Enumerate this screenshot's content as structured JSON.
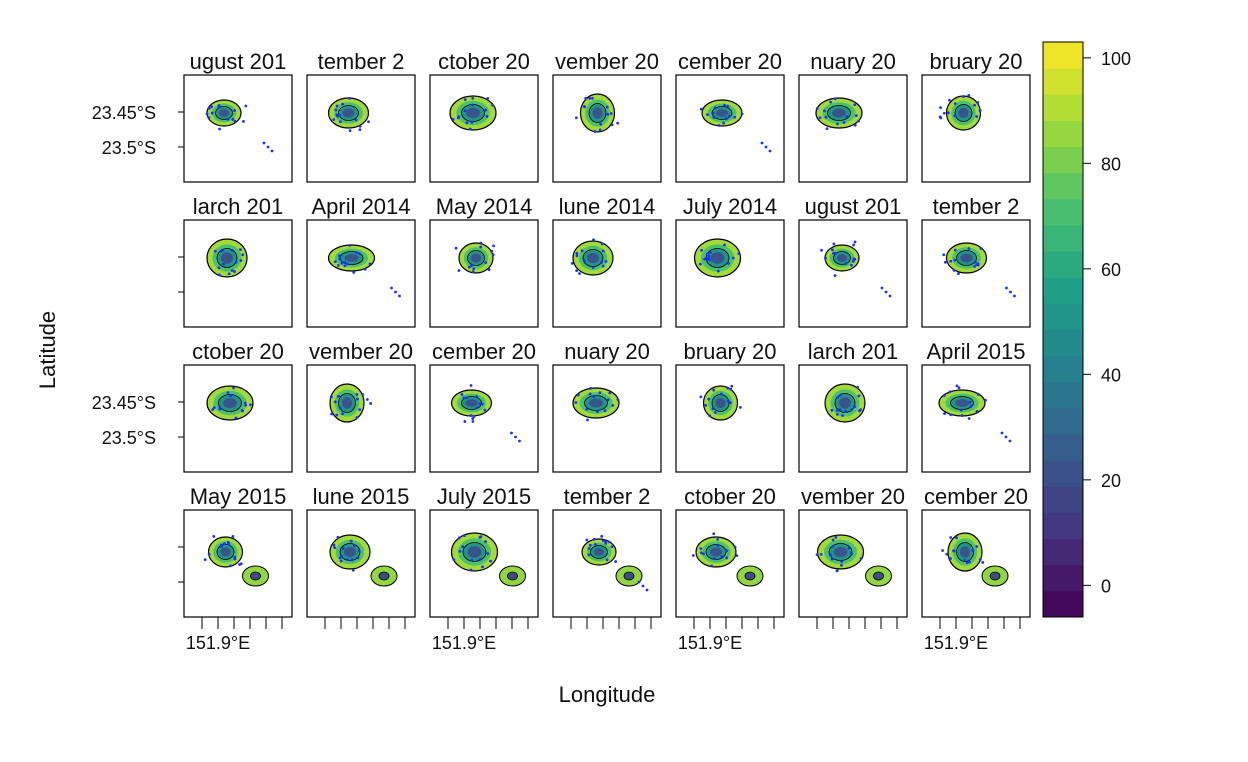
{
  "chart_data": {
    "type": "heatmap",
    "xlabel": "Longitude",
    "ylabel": "Latitude",
    "x_tick_label": "151.9°E",
    "y_tick_labels": [
      "23.45°S",
      "23.5°S"
    ],
    "grid": false,
    "colorbar": {
      "range": [
        -6,
        103
      ],
      "ticks": [
        0,
        20,
        40,
        60,
        80,
        100
      ],
      "tick_labels": [
        "0",
        "20",
        "40",
        "60",
        "80",
        "100"
      ],
      "palette": [
        "#440154",
        "#46337e",
        "#365c8d",
        "#277f8e",
        "#1fa187",
        "#4ac16d",
        "#a0da39",
        "#fde725"
      ]
    },
    "points_color": "#1f2fff",
    "panels": [
      {
        "title": "ugust 201"
      },
      {
        "title": "tember 2"
      },
      {
        "title": "ctober 20"
      },
      {
        "title": "vember 20"
      },
      {
        "title": "cember 20"
      },
      {
        "title": "nuary 20"
      },
      {
        "title": "bruary 20"
      },
      {
        "title": "larch 201"
      },
      {
        "title": "April 2014"
      },
      {
        "title": "May 2014"
      },
      {
        "title": "lune 2014"
      },
      {
        "title": "July 2014"
      },
      {
        "title": "ugust 201"
      },
      {
        "title": "tember 2"
      },
      {
        "title": "ctober 20"
      },
      {
        "title": "vember 20"
      },
      {
        "title": "cember 20"
      },
      {
        "title": "nuary 20"
      },
      {
        "title": "bruary 20"
      },
      {
        "title": "larch 201"
      },
      {
        "title": "April 2015"
      },
      {
        "title": "May 2015"
      },
      {
        "title": "lune 2015"
      },
      {
        "title": "July 2015"
      },
      {
        "title": "tember 2"
      },
      {
        "title": "ctober 20"
      },
      {
        "title": "vember 20"
      },
      {
        "title": "cember 20"
      }
    ]
  }
}
